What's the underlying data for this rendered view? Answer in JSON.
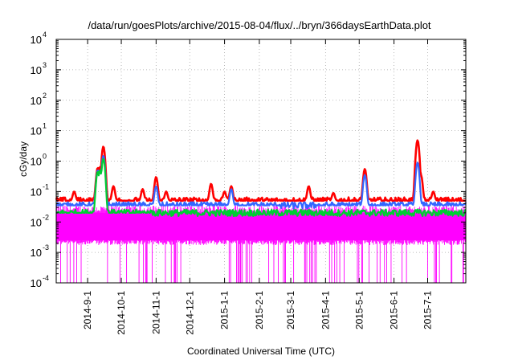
{
  "chart_data": {
    "type": "line",
    "title": "/data/run/goesPlots/archive/2015-08-04/flux/../bryn/366daysEarthData.plot",
    "xlabel": "Coordinated Universal Time (UTC)",
    "ylabel": "cGy/day",
    "y_scale": "log",
    "ylim": [
      0.0001,
      10000
    ],
    "y_ticks": [
      {
        "value": 0.0001,
        "base": "10",
        "exp": "-4"
      },
      {
        "value": 0.001,
        "base": "10",
        "exp": "-3"
      },
      {
        "value": 0.01,
        "base": "10",
        "exp": "-2"
      },
      {
        "value": 0.1,
        "base": "10",
        "exp": "-1"
      },
      {
        "value": 1,
        "base": "10",
        "exp": "0"
      },
      {
        "value": 10,
        "base": "10",
        "exp": "1"
      },
      {
        "value": 100,
        "base": "10",
        "exp": "2"
      },
      {
        "value": 1000,
        "base": "10",
        "exp": "3"
      },
      {
        "value": 10000,
        "base": "10",
        "exp": "4"
      }
    ],
    "xlim": [
      "2014-08-04",
      "2015-08-04"
    ],
    "x_ticks": [
      "2014-9-1",
      "2014-10-1",
      "2014-11-1",
      "2014-12-1",
      "2015-1-1",
      "2015-2-1",
      "2015-3-1",
      "2015-4-1",
      "2015-5-1",
      "2015-6-1",
      "2015-7-1"
    ],
    "grid": true,
    "legend": "none",
    "series": [
      {
        "color": "#ff00ff",
        "baseline": 0.0025,
        "peak_band": 0.02,
        "dropouts_to_floor": true,
        "events": []
      },
      {
        "color": "#00cc33",
        "baseline": 0.02,
        "events": [
          {
            "date": "2014-09-10",
            "value": 0.45
          },
          {
            "date": "2014-09-12",
            "value": 0.5
          },
          {
            "date": "2014-09-15",
            "value": 1.2
          }
        ]
      },
      {
        "color": "#3366ff",
        "baseline": 0.035,
        "events": [
          {
            "date": "2014-09-10",
            "value": 0.5
          },
          {
            "date": "2014-09-12",
            "value": 0.5
          },
          {
            "date": "2014-09-15",
            "value": 1.5
          },
          {
            "date": "2014-11-01",
            "value": 0.15
          },
          {
            "date": "2015-01-07",
            "value": 0.12
          },
          {
            "date": "2015-05-06",
            "value": 0.35
          },
          {
            "date": "2015-06-22",
            "value": 0.9
          }
        ]
      },
      {
        "color": "#ff0000",
        "baseline": 0.05,
        "events": [
          {
            "date": "2014-08-20",
            "value": 0.1
          },
          {
            "date": "2014-09-10",
            "value": 0.6
          },
          {
            "date": "2014-09-12",
            "value": 0.65
          },
          {
            "date": "2014-09-15",
            "value": 3.0
          },
          {
            "date": "2014-09-24",
            "value": 0.15
          },
          {
            "date": "2014-10-20",
            "value": 0.12
          },
          {
            "date": "2014-11-01",
            "value": 0.3
          },
          {
            "date": "2014-11-10",
            "value": 0.1
          },
          {
            "date": "2014-12-20",
            "value": 0.18
          },
          {
            "date": "2015-01-01",
            "value": 0.1
          },
          {
            "date": "2015-01-07",
            "value": 0.15
          },
          {
            "date": "2015-03-17",
            "value": 0.15
          },
          {
            "date": "2015-04-08",
            "value": 0.09
          },
          {
            "date": "2015-05-06",
            "value": 0.55
          },
          {
            "date": "2015-06-22",
            "value": 4.8
          },
          {
            "date": "2015-06-25",
            "value": 0.35
          },
          {
            "date": "2015-07-06",
            "value": 0.1
          }
        ]
      }
    ]
  }
}
